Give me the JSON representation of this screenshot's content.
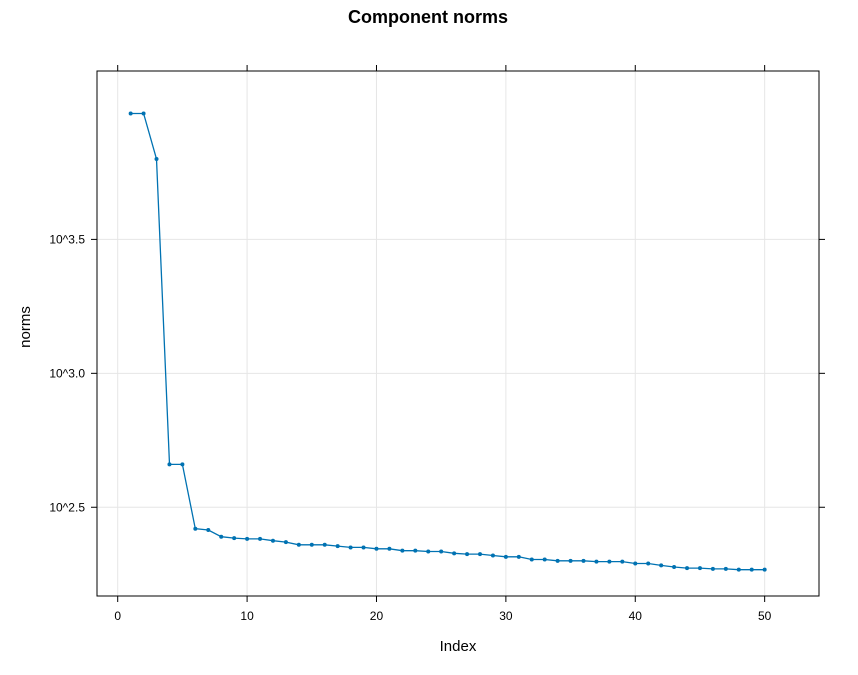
{
  "chart_data": {
    "type": "line",
    "title": "Component norms",
    "xlabel": "Index",
    "ylabel": "norms",
    "yscale": "log10",
    "xlim": [
      -1.6,
      54.2
    ],
    "ylim": [
      2.1687,
      4.1287
    ],
    "xticks": [
      0,
      10,
      20,
      30,
      40,
      50
    ],
    "xtick_labels": [
      "0",
      "10",
      "20",
      "30",
      "40",
      "50"
    ],
    "yticks": [
      2.5,
      3.0,
      3.5
    ],
    "ytick_labels": [
      "10^2.5",
      "10^3.0",
      "10^3.5"
    ],
    "grid": true,
    "series": [
      {
        "color": "#0072B2",
        "x": [
          1,
          2,
          3,
          4,
          5,
          6,
          7,
          8,
          9,
          10,
          11,
          12,
          13,
          14,
          15,
          16,
          17,
          18,
          19,
          20,
          21,
          22,
          23,
          24,
          25,
          26,
          27,
          28,
          29,
          30,
          31,
          32,
          33,
          34,
          35,
          36,
          37,
          38,
          39,
          40,
          41,
          42,
          43,
          44,
          45,
          46,
          47,
          48,
          49,
          50
        ],
        "y": [
          3.97,
          3.97,
          3.8,
          2.66,
          2.66,
          2.42,
          2.415,
          2.39,
          2.385,
          2.382,
          2.382,
          2.375,
          2.37,
          2.36,
          2.36,
          2.36,
          2.355,
          2.35,
          2.35,
          2.345,
          2.345,
          2.338,
          2.338,
          2.335,
          2.335,
          2.328,
          2.325,
          2.325,
          2.32,
          2.315,
          2.315,
          2.305,
          2.305,
          2.3,
          2.3,
          2.3,
          2.297,
          2.297,
          2.297,
          2.29,
          2.29,
          2.283,
          2.277,
          2.273,
          2.273,
          2.27,
          2.27,
          2.267,
          2.267,
          2.267
        ]
      }
    ]
  }
}
